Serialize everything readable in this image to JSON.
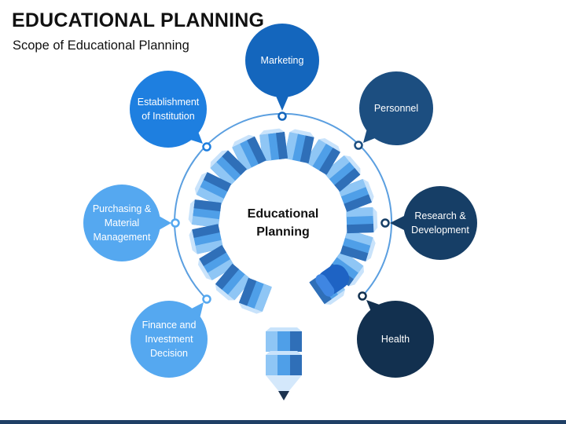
{
  "title": "EDUCATIONAL PLANNING",
  "subtitle": "Scope of Educational Planning",
  "center_label": "Educational\nPlanning",
  "colors": {
    "light_blue": "#55a8f0",
    "mid_blue": "#1e7fe0",
    "strong_blue": "#1466bd",
    "navy": "#1c4e80",
    "dark_navy": "#163e66",
    "darkest_navy": "#12304f",
    "pencil_light": "#8fc6f5",
    "pencil_mid": "#4f9fe8",
    "pencil_dark": "#2f6fb8"
  },
  "bubbles": [
    {
      "id": "marketing",
      "label": "Marketing",
      "color": "strong_blue"
    },
    {
      "id": "personnel",
      "label": "Personnel",
      "color": "navy"
    },
    {
      "id": "research",
      "label": "Research &\nDevelopment",
      "color": "dark_navy"
    },
    {
      "id": "health",
      "label": "Health",
      "color": "darkest_navy"
    },
    {
      "id": "establishment",
      "label": "Establishment\nof Institution",
      "color": "mid_blue"
    },
    {
      "id": "purchasing",
      "label": "Purchasing &\nMaterial\nManagement",
      "color": "light_blue"
    },
    {
      "id": "finance",
      "label": "Finance and\nInvestment\nDecision",
      "color": "light_blue"
    }
  ]
}
